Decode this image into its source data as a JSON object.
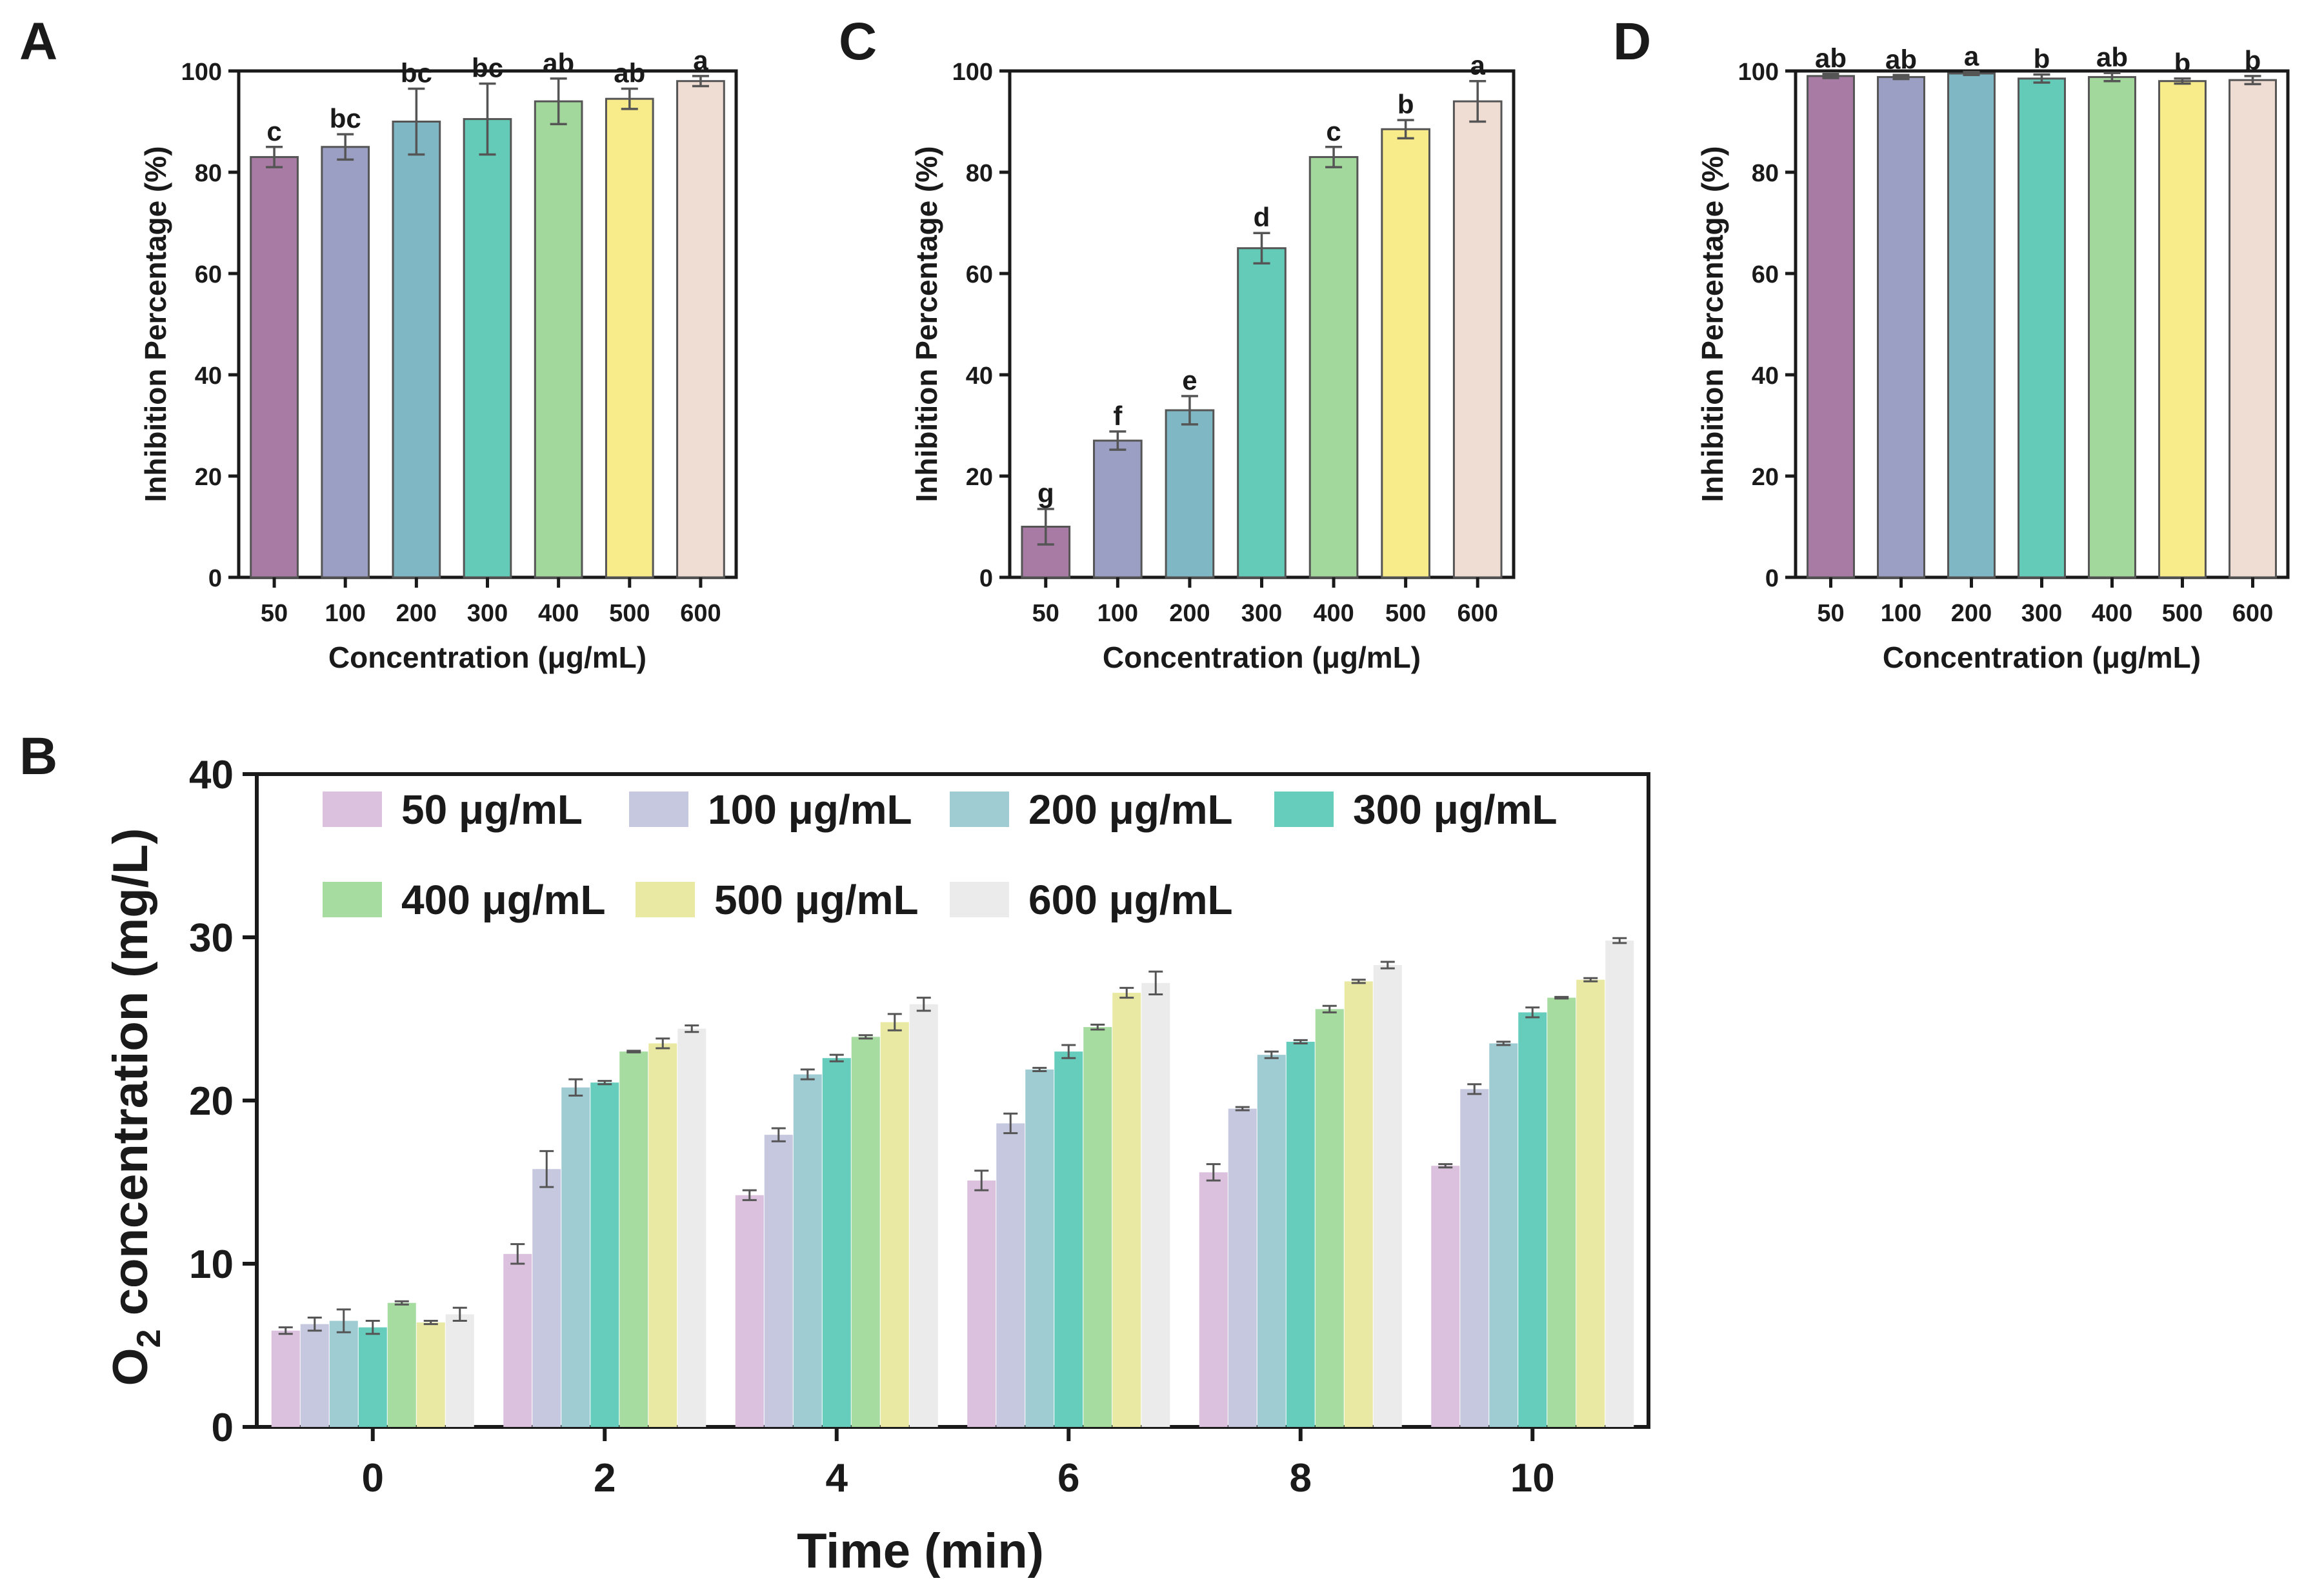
{
  "colors": {
    "panel_top": [
      "#a77ba3",
      "#9b9fc4",
      "#80b7c4",
      "#63cbb8",
      "#a2d89b",
      "#f8ec8a",
      "#efdcd2"
    ],
    "panel_b": [
      "#dbc1dd",
      "#c6c8e0",
      "#9fcbd3",
      "#66cdbd",
      "#a7dca0",
      "#eae9a4",
      "#ebebeb"
    ],
    "axis": "#1a1a1a",
    "error": "#555555"
  },
  "chart_data": [
    {
      "panel": "A",
      "type": "bar",
      "title": "",
      "xlabel": "Concentration (μg/mL)",
      "ylabel": "Inhibition Percentage (%)",
      "ylim": [
        0,
        100
      ],
      "yticks": [
        "0",
        "20",
        "40",
        "60",
        "80",
        "100"
      ],
      "categories": [
        "50",
        "100",
        "200",
        "300",
        "400",
        "500",
        "600"
      ],
      "values": [
        83,
        85,
        90,
        90.5,
        94,
        94.5,
        98
      ],
      "errors": [
        2,
        2.5,
        6.5,
        7,
        4.5,
        2,
        1
      ],
      "labels": [
        "c",
        "bc",
        "bc",
        "bc",
        "ab",
        "ab",
        "a"
      ]
    },
    {
      "panel": "C",
      "type": "bar",
      "title": "",
      "xlabel": "Concentration (μg/mL)",
      "ylabel": "Inhibition Percentage (%)",
      "ylim": [
        0,
        100
      ],
      "yticks": [
        "0",
        "20",
        "40",
        "60",
        "80",
        "100"
      ],
      "categories": [
        "50",
        "100",
        "200",
        "300",
        "400",
        "500",
        "600"
      ],
      "values": [
        10,
        27,
        33,
        65,
        83,
        88.5,
        94
      ],
      "errors": [
        3.5,
        1.8,
        2.8,
        3,
        2,
        1.8,
        4
      ],
      "labels": [
        "g",
        "f",
        "e",
        "d",
        "c",
        "b",
        "a"
      ]
    },
    {
      "panel": "D",
      "type": "bar",
      "title": "",
      "xlabel": "Concentration (μg/mL)",
      "ylabel": "Inhibition Percentage (%)",
      "ylim": [
        0,
        100
      ],
      "yticks": [
        "0",
        "20",
        "40",
        "60",
        "80",
        "100"
      ],
      "categories": [
        "50",
        "100",
        "200",
        "300",
        "400",
        "500",
        "600"
      ],
      "values": [
        99,
        98.8,
        99.5,
        98.5,
        98.8,
        98,
        98.2
      ],
      "errors": [
        0.4,
        0.4,
        0.3,
        0.8,
        0.8,
        0.5,
        0.8
      ],
      "labels": [
        "ab",
        "ab",
        "a",
        "b",
        "ab",
        "b",
        "b"
      ]
    },
    {
      "panel": "B",
      "type": "bar",
      "title": "",
      "xlabel": "Time (min)",
      "ylabel_main": "O",
      "ylabel_sub": "2",
      "ylabel_rest": " concentration (mg/L)",
      "ylim": [
        0,
        40
      ],
      "yticks": [
        "0",
        "10",
        "20",
        "30",
        "40"
      ],
      "categories": [
        "0",
        "2",
        "4",
        "6",
        "8",
        "10"
      ],
      "series": [
        {
          "name": "50 μg/mL",
          "values": [
            5.9,
            10.6,
            14.2,
            15.1,
            15.6,
            16.0
          ],
          "errors": [
            0.2,
            0.6,
            0.3,
            0.6,
            0.5,
            0.1
          ]
        },
        {
          "name": "100 μg/mL",
          "values": [
            6.3,
            15.8,
            17.9,
            18.6,
            19.5,
            20.7
          ],
          "errors": [
            0.4,
            1.1,
            0.4,
            0.6,
            0.1,
            0.3
          ]
        },
        {
          "name": "200 μg/mL",
          "values": [
            6.5,
            20.8,
            21.6,
            21.9,
            22.8,
            23.5
          ],
          "errors": [
            0.7,
            0.5,
            0.3,
            0.1,
            0.2,
            0.1
          ]
        },
        {
          "name": "300 μg/mL",
          "values": [
            6.1,
            21.1,
            22.6,
            23.0,
            23.6,
            25.4
          ],
          "errors": [
            0.4,
            0.1,
            0.2,
            0.4,
            0.1,
            0.3
          ]
        },
        {
          "name": "400 μg/mL",
          "values": [
            7.6,
            23.0,
            23.9,
            24.5,
            25.6,
            26.3
          ],
          "errors": [
            0.1,
            0.05,
            0.1,
            0.15,
            0.2,
            0.05
          ]
        },
        {
          "name": "500 μg/mL",
          "values": [
            6.4,
            23.5,
            24.8,
            26.6,
            27.3,
            27.4
          ],
          "errors": [
            0.1,
            0.3,
            0.5,
            0.3,
            0.1,
            0.1
          ]
        },
        {
          "name": "600 μg/mL",
          "values": [
            6.9,
            24.4,
            25.9,
            27.2,
            28.3,
            29.8
          ],
          "errors": [
            0.4,
            0.2,
            0.4,
            0.7,
            0.2,
            0.15
          ]
        }
      ]
    }
  ]
}
